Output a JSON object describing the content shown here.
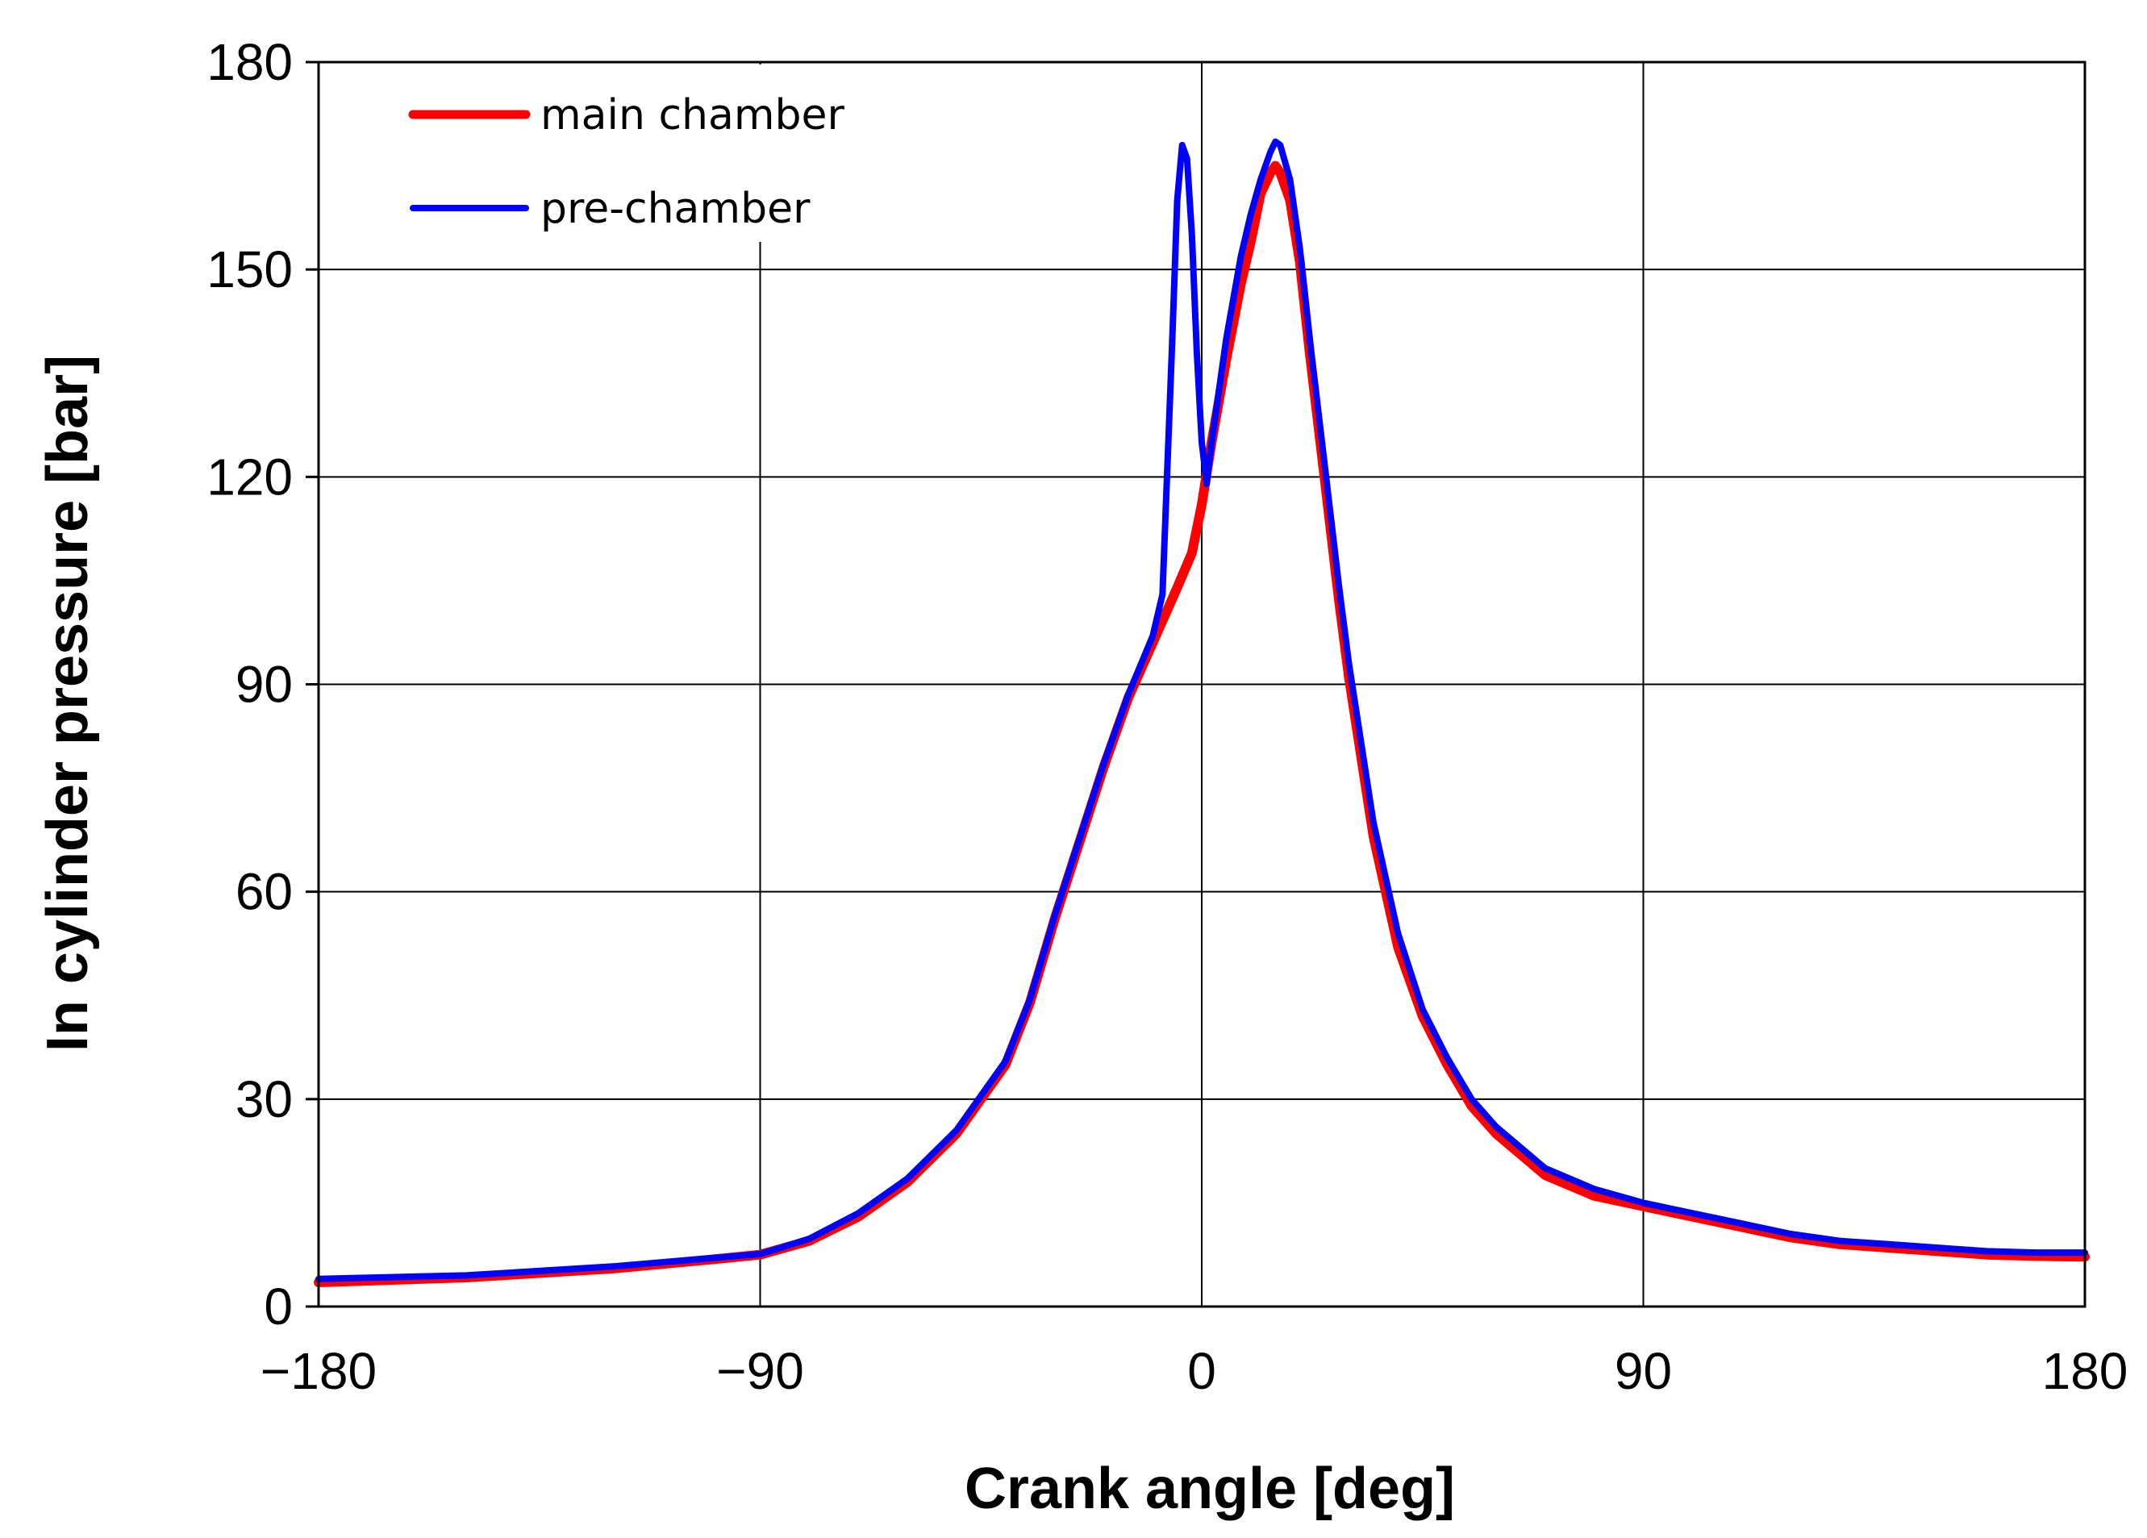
{
  "chart_data": {
    "type": "line",
    "xlabel": "Crank angle [deg]",
    "ylabel": "In cylinder pressure [bar]",
    "xlim": [
      -180,
      180
    ],
    "ylim": [
      0,
      180
    ],
    "xticks": [
      -180,
      -90,
      0,
      90,
      180
    ],
    "xtick_labels": [
      "−180",
      "−90",
      "0",
      "90",
      "180"
    ],
    "yticks": [
      0,
      30,
      60,
      90,
      120,
      150,
      180
    ],
    "ytick_labels": [
      "0",
      "30",
      "60",
      "90",
      "120",
      "150",
      "180"
    ],
    "grid": true,
    "legend_position": "top-left",
    "series": [
      {
        "name": "main chamber",
        "color": "#ff0000",
        "x": [
          -180,
          -150,
          -120,
          -100,
          -90,
          -80,
          -70,
          -60,
          -50,
          -40,
          -35,
          -30,
          -25,
          -20,
          -15,
          -10,
          -5,
          -2,
          0,
          2,
          5,
          8,
          10,
          12,
          14,
          15,
          16,
          18,
          20,
          22,
          25,
          28,
          30,
          35,
          40,
          45,
          50,
          55,
          60,
          70,
          80,
          90,
          100,
          110,
          120,
          130,
          140,
          150,
          160,
          170,
          180
        ],
        "y": [
          3.5,
          4.2,
          5.5,
          6.8,
          7.5,
          9.5,
          13,
          18,
          25,
          35,
          44,
          56,
          67,
          78,
          88,
          96,
          104,
          109,
          116,
          125,
          137,
          148,
          154,
          161,
          164,
          165,
          164,
          160,
          151,
          138,
          120,
          102,
          91,
          68,
          52,
          42,
          35,
          29,
          25,
          19,
          16,
          14.5,
          13,
          11.5,
          10,
          9,
          8.5,
          8,
          7.5,
          7.3,
          7.2
        ]
      },
      {
        "name": "pre-chamber",
        "color": "#0000ff",
        "x": [
          -180,
          -150,
          -120,
          -100,
          -90,
          -80,
          -70,
          -60,
          -50,
          -40,
          -35,
          -30,
          -25,
          -20,
          -15,
          -10,
          -8,
          -6,
          -5,
          -4,
          -3,
          -2,
          -1,
          0,
          1,
          2,
          5,
          8,
          10,
          12,
          14,
          15,
          16,
          18,
          20,
          22,
          25,
          28,
          30,
          35,
          40,
          45,
          50,
          55,
          60,
          70,
          80,
          90,
          100,
          110,
          120,
          130,
          140,
          150,
          160,
          170,
          180
        ],
        "y": [
          4,
          4.5,
          5.8,
          7,
          7.6,
          9.8,
          13.5,
          18.5,
          25.5,
          35.5,
          44.5,
          56.5,
          67.5,
          78.5,
          88.5,
          97,
          103,
          140,
          160,
          168,
          166,
          155,
          138,
          125,
          119,
          125,
          140,
          152,
          158,
          163,
          167,
          168.5,
          168,
          163,
          153,
          140,
          122,
          104,
          93,
          70,
          54,
          43,
          36,
          30,
          26,
          20,
          17,
          15,
          13.5,
          12,
          10.5,
          9.5,
          9,
          8.5,
          8,
          7.8,
          7.8
        ]
      }
    ]
  }
}
